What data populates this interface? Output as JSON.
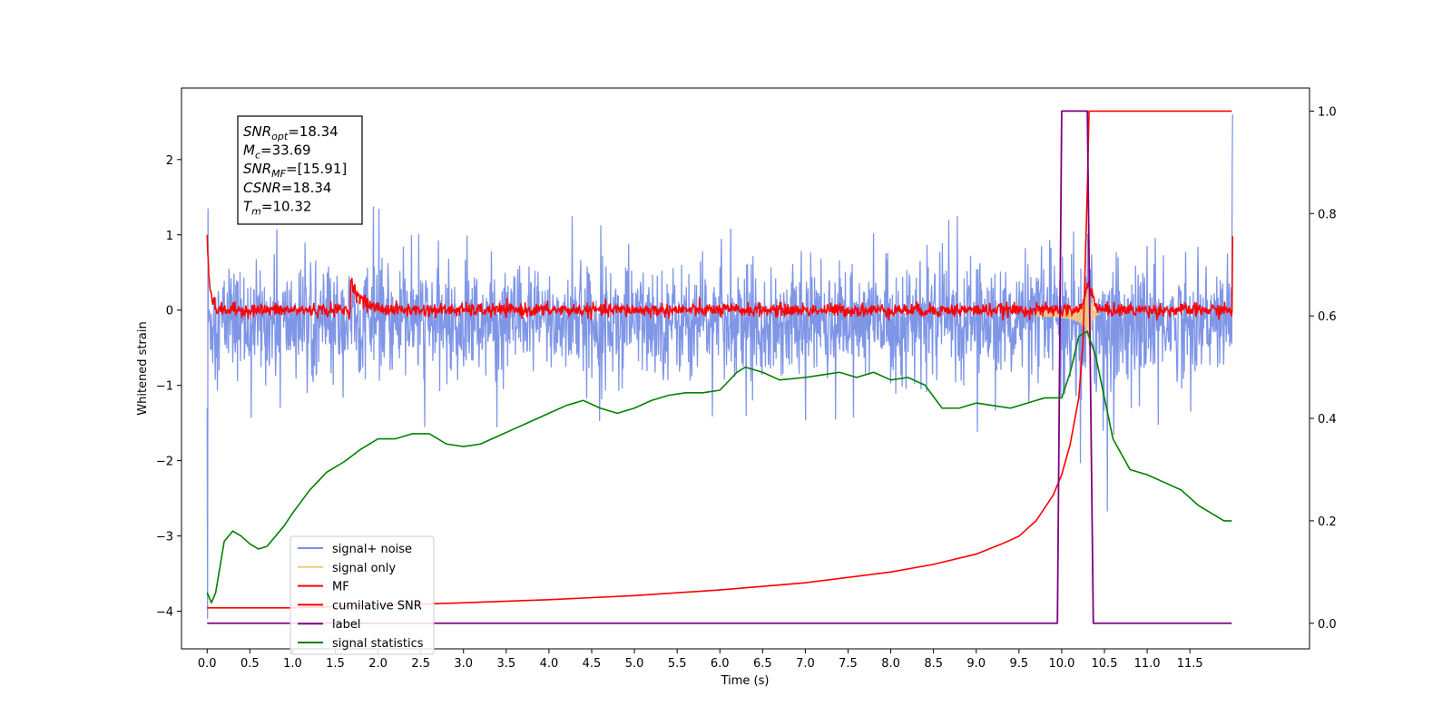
{
  "chart_data": {
    "type": "line",
    "xlabel": "Time (s)",
    "ylabel": "Whitened strain",
    "xlim": [
      -0.3,
      12.9
    ],
    "ylim": [
      -4.5,
      2.95
    ],
    "y2lim": [
      -0.05,
      1.045
    ],
    "grid": false,
    "x_ticks": [
      "0.0",
      "0.5",
      "1.0",
      "1.5",
      "2.0",
      "2.5",
      "3.0",
      "3.5",
      "4.0",
      "4.5",
      "5.0",
      "5.5",
      "6.0",
      "6.5",
      "7.0",
      "7.5",
      "8.0",
      "8.5",
      "9.0",
      "9.5",
      "10.0",
      "10.5",
      "11.0",
      "11.5"
    ],
    "y_ticks": [
      "2",
      "1",
      "0",
      "−1",
      "−2",
      "−3",
      "−4"
    ],
    "y2_ticks": [
      "0.0",
      "0.2",
      "0.4",
      "0.6",
      "0.8",
      "1.0"
    ],
    "legend_position": "lower-left",
    "annotation": [
      {
        "base": "SNR",
        "sub": "opt",
        "value": "=18.34"
      },
      {
        "base": "M",
        "sub": "c",
        "value": "=33.69"
      },
      {
        "base": "SNR",
        "sub": "MF",
        "value": "=[15.91]"
      },
      {
        "base": "CSNR",
        "sub": "",
        "value": "=18.34"
      },
      {
        "base": "T",
        "sub": "m",
        "value": "=10.32"
      }
    ],
    "series": [
      {
        "name": "signal+ noise",
        "color": "#7890e6",
        "axis": "left",
        "kind": "noise",
        "duration": 12.0,
        "std": 0.35,
        "peak_time": 10.32
      },
      {
        "name": "signal only",
        "color": "#f5c97a",
        "axis": "left",
        "kind": "chirp",
        "merger_time": 10.32,
        "peak_amplitude": 0.5
      },
      {
        "name": "MF",
        "color": "#ff0000",
        "axis": "left",
        "kind": "matched_filter",
        "start_value": 1.0,
        "baseline": 0.0,
        "bump_time": 1.68,
        "bump_value": 0.4,
        "peak_time": 10.32,
        "end_value": 0.98
      },
      {
        "name": "cumilative SNR",
        "color": "#ff0000",
        "axis": "right",
        "x": [
          0.0,
          0.5,
          1.0,
          2.0,
          3.0,
          4.0,
          5.0,
          6.0,
          7.0,
          8.0,
          8.5,
          9.0,
          9.3,
          9.5,
          9.7,
          9.9,
          10.0,
          10.1,
          10.2,
          10.25,
          10.3,
          10.32,
          10.35,
          11.0,
          11.99
        ],
        "values": [
          0.03,
          0.03,
          0.03,
          0.035,
          0.04,
          0.046,
          0.054,
          0.065,
          0.079,
          0.1,
          0.115,
          0.135,
          0.155,
          0.17,
          0.2,
          0.25,
          0.29,
          0.35,
          0.44,
          0.55,
          0.85,
          1.0,
          1.0,
          1.0,
          1.0
        ]
      },
      {
        "name": "label",
        "color": "#800080",
        "axis": "right",
        "x": [
          0.0,
          9.95,
          10.0,
          10.3,
          10.37,
          11.99
        ],
        "values": [
          0.0,
          0.0,
          1.0,
          1.0,
          0.0,
          0.0
        ]
      },
      {
        "name": "signal statistics",
        "color": "#008000",
        "axis": "right",
        "x": [
          0.0,
          0.05,
          0.1,
          0.2,
          0.3,
          0.4,
          0.5,
          0.6,
          0.7,
          0.8,
          0.9,
          1.0,
          1.2,
          1.4,
          1.6,
          1.8,
          2.0,
          2.2,
          2.4,
          2.6,
          2.8,
          3.0,
          3.2,
          3.4,
          3.6,
          3.8,
          4.0,
          4.2,
          4.4,
          4.6,
          4.8,
          5.0,
          5.2,
          5.4,
          5.6,
          5.8,
          6.0,
          6.2,
          6.3,
          6.5,
          6.7,
          7.0,
          7.2,
          7.4,
          7.6,
          7.8,
          8.0,
          8.2,
          8.4,
          8.6,
          8.8,
          9.0,
          9.2,
          9.4,
          9.6,
          9.8,
          10.0,
          10.1,
          10.2,
          10.3,
          10.4,
          10.5,
          10.6,
          10.8,
          11.0,
          11.2,
          11.4,
          11.6,
          11.8,
          11.9,
          11.99
        ],
        "values": [
          0.06,
          0.04,
          0.06,
          0.16,
          0.18,
          0.17,
          0.155,
          0.145,
          0.15,
          0.17,
          0.19,
          0.215,
          0.26,
          0.295,
          0.315,
          0.34,
          0.36,
          0.36,
          0.37,
          0.37,
          0.35,
          0.345,
          0.35,
          0.365,
          0.38,
          0.395,
          0.41,
          0.425,
          0.435,
          0.42,
          0.41,
          0.42,
          0.435,
          0.445,
          0.45,
          0.45,
          0.455,
          0.49,
          0.5,
          0.49,
          0.475,
          0.48,
          0.485,
          0.49,
          0.48,
          0.49,
          0.475,
          0.48,
          0.465,
          0.42,
          0.42,
          0.43,
          0.425,
          0.42,
          0.43,
          0.44,
          0.44,
          0.49,
          0.56,
          0.57,
          0.52,
          0.44,
          0.36,
          0.3,
          0.29,
          0.275,
          0.26,
          0.23,
          0.21,
          0.2,
          0.2
        ]
      }
    ]
  }
}
